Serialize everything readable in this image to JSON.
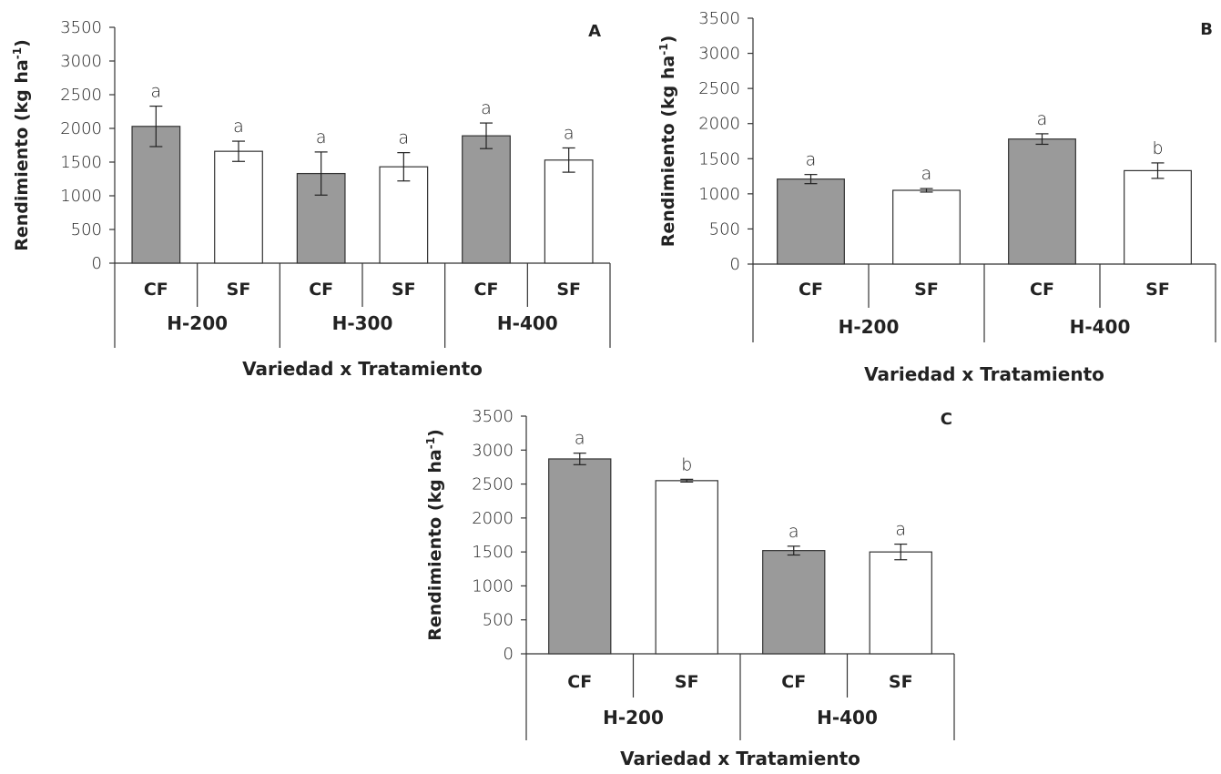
{
  "chart_data": [
    {
      "type": "bar",
      "panel_label": "A",
      "ylabel": "Rendimiento (kg ha-1)",
      "ylabel_sup": "-1",
      "xlabel": "Variedad x Tratamiento",
      "ylim": [
        0,
        3500
      ],
      "yticks": [
        "0",
        "500",
        "1000",
        "1500",
        "2000",
        "2500",
        "3000",
        "3500"
      ],
      "groups": [
        {
          "name": "H-200",
          "bars": [
            {
              "label": "CF",
              "value": 2030,
              "error": 300,
              "letter": "a",
              "fill": "#9a9a9a"
            },
            {
              "label": "SF",
              "value": 1660,
              "error": 150,
              "letter": "a",
              "fill": "#ffffff"
            }
          ]
        },
        {
          "name": "H-300",
          "bars": [
            {
              "label": "CF",
              "value": 1330,
              "error": 320,
              "letter": "a",
              "fill": "#9a9a9a"
            },
            {
              "label": "SF",
              "value": 1430,
              "error": 210,
              "letter": "a",
              "fill": "#ffffff"
            }
          ]
        },
        {
          "name": "H-400",
          "bars": [
            {
              "label": "CF",
              "value": 1890,
              "error": 190,
              "letter": "a",
              "fill": "#9a9a9a"
            },
            {
              "label": "SF",
              "value": 1530,
              "error": 180,
              "letter": "a",
              "fill": "#ffffff"
            }
          ]
        }
      ]
    },
    {
      "type": "bar",
      "panel_label": "B",
      "ylabel": "Rendimiento (kg ha-1)",
      "ylabel_sup": "-1",
      "xlabel": "Variedad x Tratamiento",
      "ylim": [
        0,
        3500
      ],
      "yticks": [
        "0",
        "500",
        "1000",
        "1500",
        "2000",
        "2500",
        "3000",
        "3500"
      ],
      "groups": [
        {
          "name": "H-200",
          "bars": [
            {
              "label": "CF",
              "value": 1210,
              "error": 65,
              "letter": "a",
              "fill": "#9a9a9a"
            },
            {
              "label": "SF",
              "value": 1050,
              "error": 25,
              "letter": "a",
              "fill": "#ffffff"
            }
          ]
        },
        {
          "name": "H-400",
          "bars": [
            {
              "label": "CF",
              "value": 1780,
              "error": 75,
              "letter": "a",
              "fill": "#9a9a9a"
            },
            {
              "label": "SF",
              "value": 1330,
              "error": 110,
              "letter": "b",
              "fill": "#ffffff"
            }
          ]
        }
      ]
    },
    {
      "type": "bar",
      "panel_label": "C",
      "ylabel": "Rendimiento (kg ha-1)",
      "ylabel_sup": "-1",
      "xlabel": "Variedad x Tratamiento",
      "ylim": [
        0,
        3500
      ],
      "yticks": [
        "0",
        "500",
        "1000",
        "1500",
        "2000",
        "2500",
        "3000",
        "3500"
      ],
      "groups": [
        {
          "name": "H-200",
          "bars": [
            {
              "label": "CF",
              "value": 2870,
              "error": 85,
              "letter": "a",
              "fill": "#9a9a9a"
            },
            {
              "label": "SF",
              "value": 2550,
              "error": 20,
              "letter": "b",
              "fill": "#ffffff"
            }
          ]
        },
        {
          "name": "H-400",
          "bars": [
            {
              "label": "CF",
              "value": 1520,
              "error": 65,
              "letter": "a",
              "fill": "#9a9a9a"
            },
            {
              "label": "SF",
              "value": 1500,
              "error": 115,
              "letter": "a",
              "fill": "#ffffff"
            }
          ]
        }
      ]
    }
  ]
}
